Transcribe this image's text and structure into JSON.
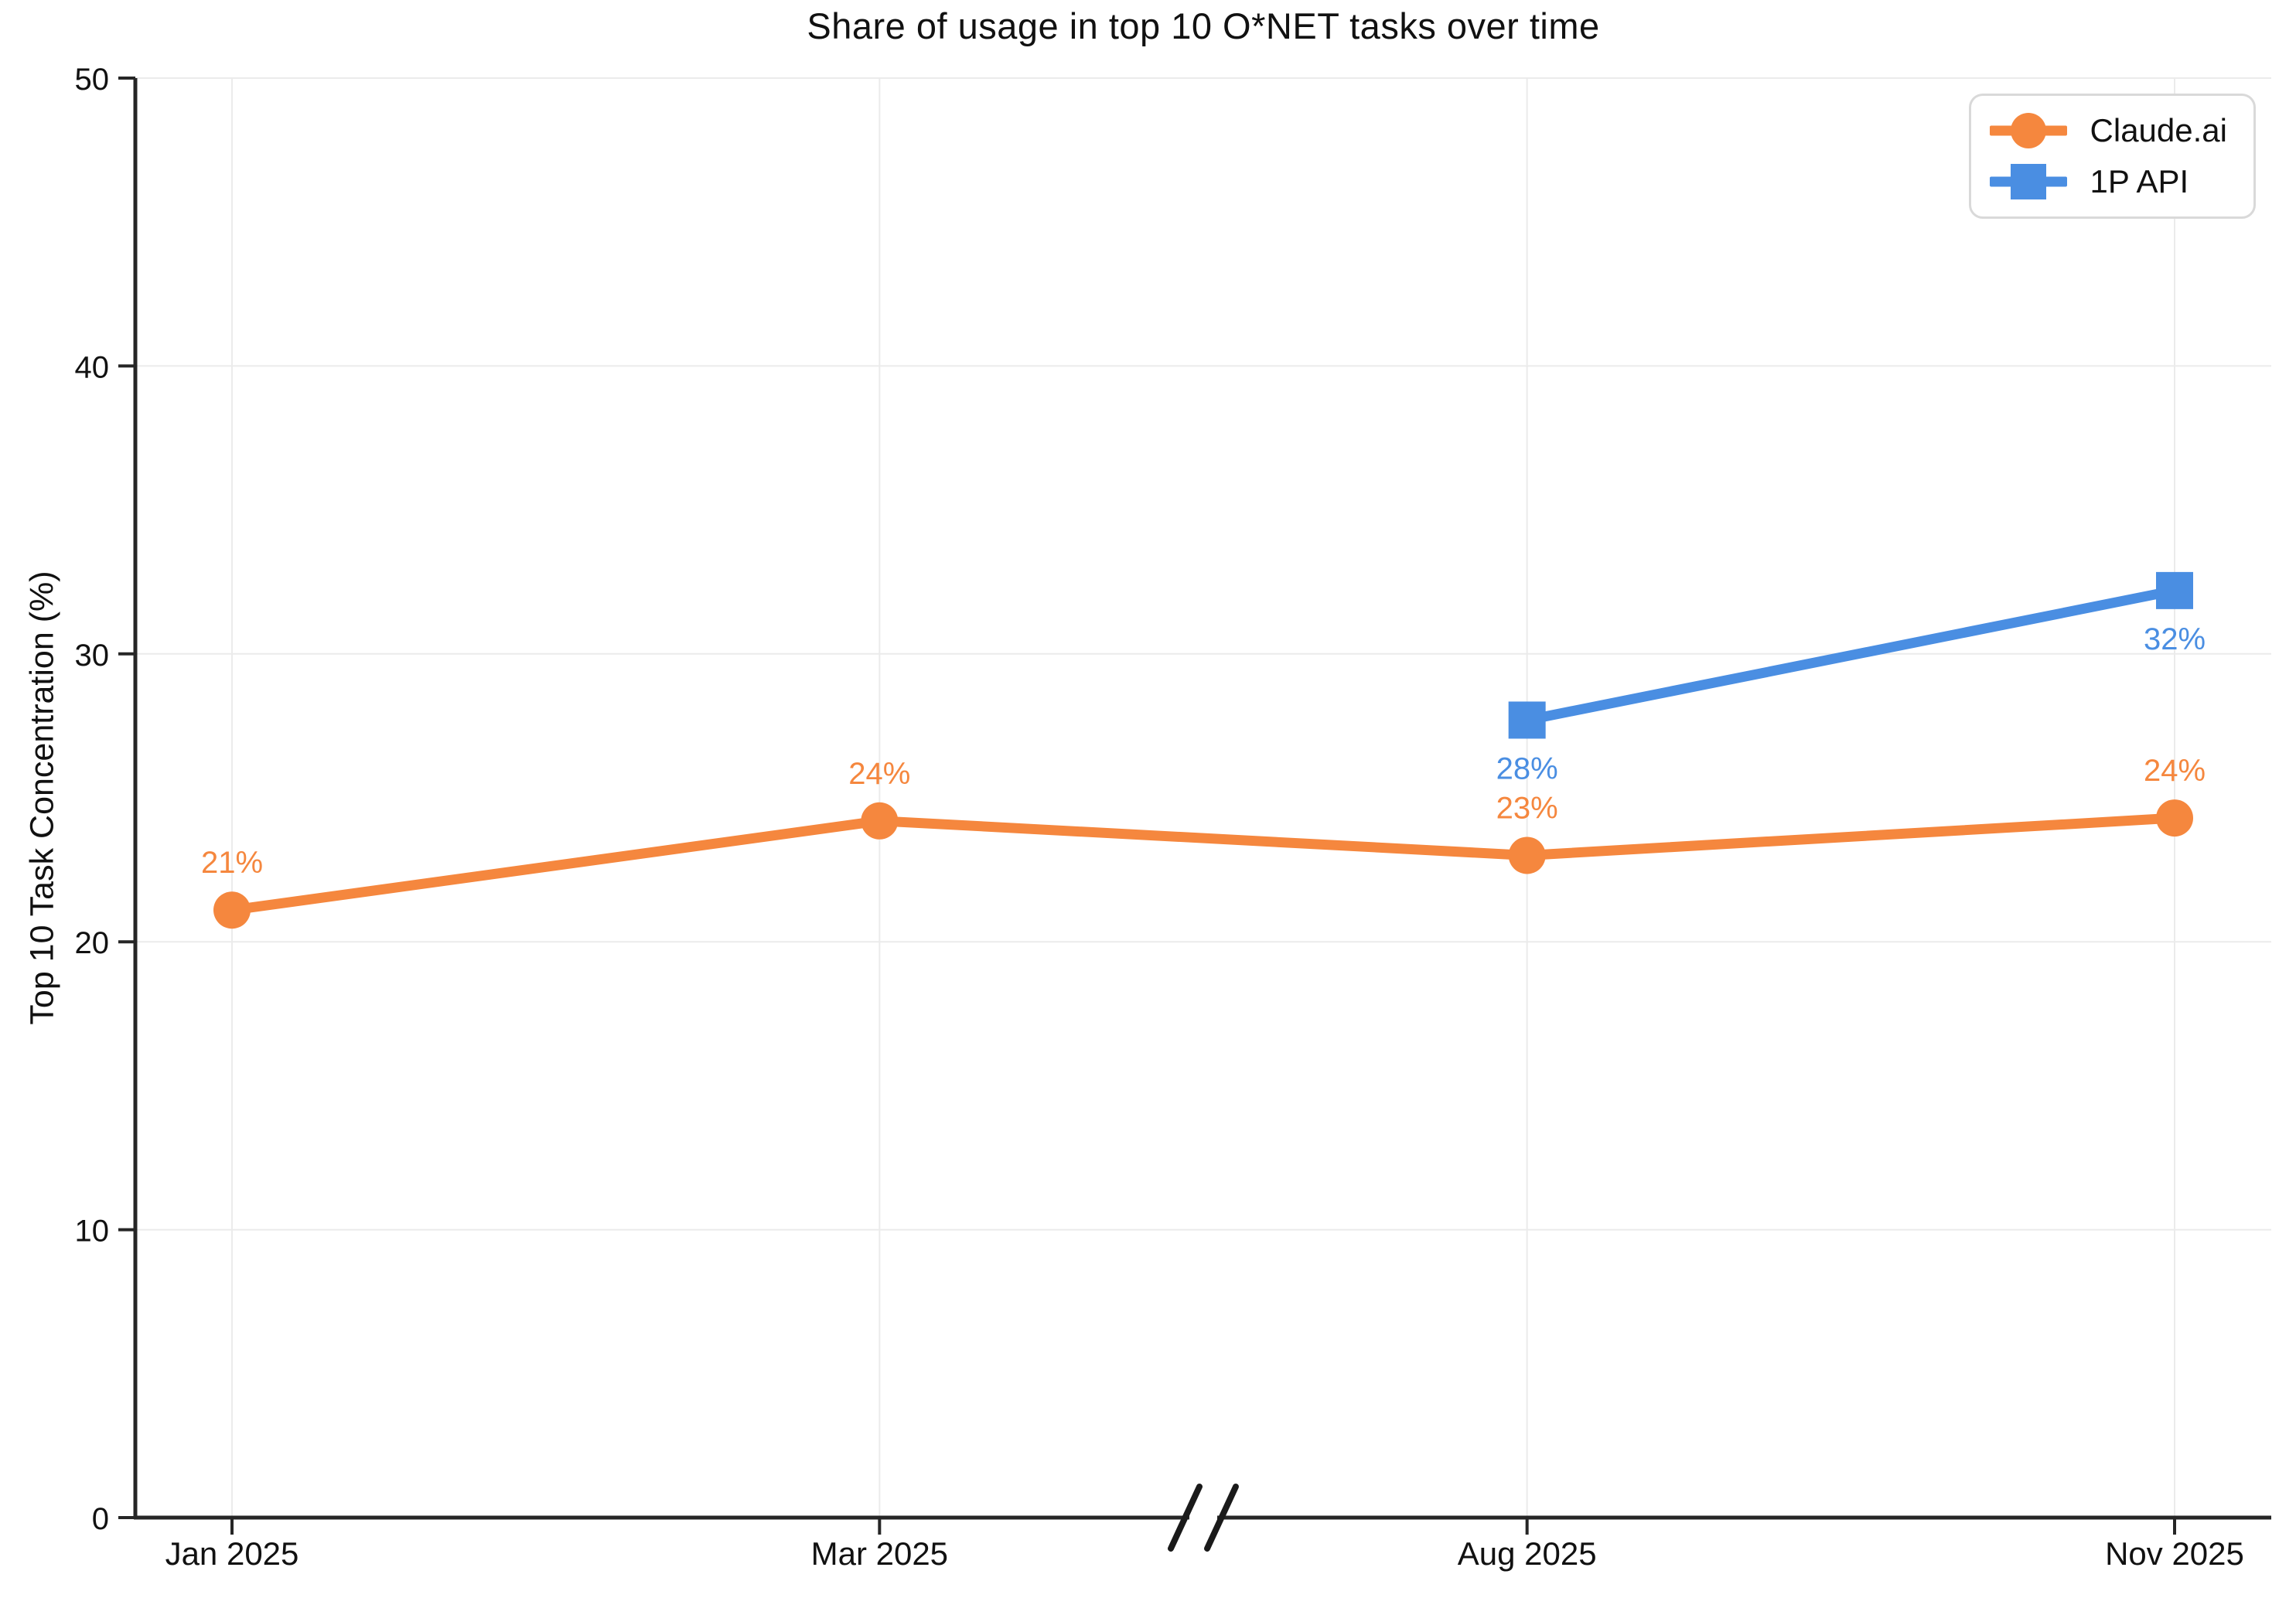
{
  "chart_data": {
    "type": "line",
    "title": "Share of usage in top 10 O*NET tasks over time",
    "ylabel": "Top 10 Task Concentration (%)",
    "xlabel": "",
    "categories": [
      "Jan 2025",
      "Mar 2025",
      "Aug 2025",
      "Nov 2025"
    ],
    "ylim": [
      0,
      50
    ],
    "yticks": [
      0,
      10,
      20,
      30,
      40,
      50
    ],
    "grid": true,
    "legend_position": "top-right",
    "axis_break": {
      "between": [
        "Mar 2025",
        "Aug 2025"
      ],
      "symbol": "//"
    },
    "colors": {
      "claude_ai": "#F5873E",
      "1p_api": "#4A8EE2",
      "axis": "#262626",
      "grid": "#ebebeb"
    },
    "series": [
      {
        "name": "Claude.ai",
        "color": "#F5873E",
        "marker": "circle",
        "label_position": "above",
        "x": [
          "Jan 2025",
          "Mar 2025",
          "Aug 2025",
          "Nov 2025"
        ],
        "values": [
          21.1,
          24.2,
          23.0,
          24.3
        ],
        "labels": [
          "21%",
          "24%",
          "23%",
          "24%"
        ]
      },
      {
        "name": "1P API",
        "color": "#4A8EE2",
        "marker": "square",
        "label_position": "below",
        "x": [
          "Aug 2025",
          "Nov 2025"
        ],
        "values": [
          27.7,
          32.2
        ],
        "labels": [
          "28%",
          "32%"
        ]
      }
    ]
  }
}
